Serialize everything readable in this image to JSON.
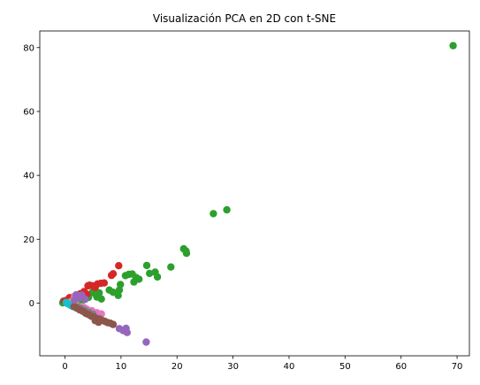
{
  "chart_data": {
    "type": "scatter",
    "title": "Visualización PCA en 2D con t-SNE",
    "xlabel": "",
    "ylabel": "",
    "xlim": [
      -4.5,
      72.2
    ],
    "ylim": [
      -16.5,
      85.2
    ],
    "xticks": [
      0,
      10,
      20,
      30,
      40,
      50,
      60,
      70
    ],
    "yticks": [
      0,
      20,
      40,
      60,
      80
    ],
    "grid": false,
    "legend": "none",
    "series": [
      {
        "color": "#2ca02c",
        "points": [
          [
            69.3,
            80.6
          ],
          [
            28.9,
            29.2
          ],
          [
            26.5,
            28.0
          ],
          [
            21.2,
            17.0
          ],
          [
            21.6,
            16.3
          ],
          [
            21.7,
            15.6
          ],
          [
            18.9,
            11.3
          ],
          [
            14.6,
            11.8
          ],
          [
            16.1,
            9.7
          ],
          [
            16.5,
            8.2
          ],
          [
            15.1,
            9.3
          ],
          [
            13.2,
            7.5
          ],
          [
            12.7,
            8.0
          ],
          [
            12.0,
            9.1
          ],
          [
            11.4,
            9.0
          ],
          [
            10.8,
            8.6
          ],
          [
            12.3,
            6.6
          ],
          [
            9.9,
            5.8
          ],
          [
            9.7,
            4.1
          ],
          [
            9.5,
            2.4
          ],
          [
            8.6,
            3.4
          ],
          [
            7.9,
            4.1
          ],
          [
            6.1,
            3.2
          ],
          [
            5.7,
            1.9
          ],
          [
            6.5,
            1.3
          ],
          [
            4.9,
            3.4
          ],
          [
            5.4,
            2.9
          ],
          [
            4.2,
            1.8
          ],
          [
            3.3,
            1.0
          ],
          [
            2.6,
            0.8
          ],
          [
            2.0,
            1.2
          ],
          [
            1.4,
            0.8
          ],
          [
            1.0,
            1.4
          ],
          [
            0.6,
            0.5
          ],
          [
            0.2,
            0.7
          ],
          [
            -0.2,
            0.2
          ],
          [
            -0.4,
            0.1
          ],
          [
            0.4,
            0.3
          ],
          [
            -0.3,
            0.6
          ]
        ]
      },
      {
        "color": "#d62728",
        "points": [
          [
            9.6,
            11.7
          ],
          [
            8.6,
            9.2
          ],
          [
            8.3,
            8.7
          ],
          [
            7.0,
            6.3
          ],
          [
            6.4,
            6.2
          ],
          [
            5.8,
            6.0
          ],
          [
            5.4,
            4.9
          ],
          [
            4.9,
            5.4
          ],
          [
            4.4,
            5.6
          ],
          [
            4.1,
            5.4
          ],
          [
            3.4,
            3.6
          ],
          [
            2.7,
            2.9
          ],
          [
            3.9,
            2.8
          ],
          [
            2.9,
            2.1
          ],
          [
            2.2,
            1.6
          ],
          [
            1.5,
            1.9
          ],
          [
            1.1,
            1.4
          ],
          [
            0.3,
            0.9
          ],
          [
            0.8,
            1.7
          ],
          [
            -0.1,
            0.6
          ]
        ]
      },
      {
        "color": "#e377c2",
        "points": [
          [
            6.5,
            -3.4
          ],
          [
            5.7,
            -3.0
          ],
          [
            4.8,
            -2.4
          ],
          [
            3.9,
            -1.9
          ],
          [
            3.4,
            -1.4
          ],
          [
            2.7,
            -1.1
          ],
          [
            2.1,
            -0.8
          ],
          [
            1.6,
            -0.5
          ],
          [
            2.3,
            2.4
          ],
          [
            1.7,
            2.1
          ],
          [
            1.2,
            0.6
          ],
          [
            0.8,
            -0.2
          ]
        ]
      },
      {
        "color": "#bcbd22",
        "points": [
          [
            1.6,
            -0.9
          ],
          [
            1.1,
            -0.4
          ],
          [
            0.7,
            0.1
          ],
          [
            2.2,
            -1.6
          ],
          [
            1.9,
            0.9
          ]
        ]
      },
      {
        "color": "#17becf",
        "points": [
          [
            0.5,
            -0.2
          ],
          [
            1.0,
            -0.7
          ],
          [
            0.2,
            0.2
          ],
          [
            1.4,
            -1.1
          ]
        ]
      },
      {
        "color": "#7f7f7f",
        "points": [
          [
            2.9,
            -1.7
          ],
          [
            3.6,
            -2.3
          ],
          [
            4.3,
            -2.9
          ],
          [
            2.3,
            -1.3
          ],
          [
            5.0,
            -3.5
          ]
        ]
      },
      {
        "color": "#8c564b",
        "points": [
          [
            8.6,
            -6.7
          ],
          [
            8.1,
            -6.3
          ],
          [
            7.6,
            -6.1
          ],
          [
            7.1,
            -5.7
          ],
          [
            6.6,
            -5.4
          ],
          [
            6.2,
            -5.0
          ],
          [
            5.7,
            -4.8
          ],
          [
            5.2,
            -4.4
          ],
          [
            4.7,
            -4.1
          ],
          [
            4.2,
            -3.6
          ],
          [
            3.7,
            -3.2
          ],
          [
            3.2,
            -2.6
          ],
          [
            2.6,
            -2.1
          ],
          [
            2.1,
            -1.6
          ],
          [
            1.6,
            -1.1
          ],
          [
            6.0,
            -6.0
          ],
          [
            5.4,
            -5.5
          ]
        ]
      },
      {
        "color": "#9467bd",
        "points": [
          [
            14.5,
            -12.2
          ],
          [
            11.1,
            -9.2
          ],
          [
            10.9,
            -7.9
          ],
          [
            10.4,
            -8.6
          ],
          [
            9.7,
            -8.0
          ],
          [
            3.0,
            2.5
          ],
          [
            2.0,
            2.6
          ],
          [
            2.5,
            1.6
          ],
          [
            1.7,
            0.9
          ],
          [
            3.6,
            1.2
          ]
        ]
      }
    ]
  }
}
